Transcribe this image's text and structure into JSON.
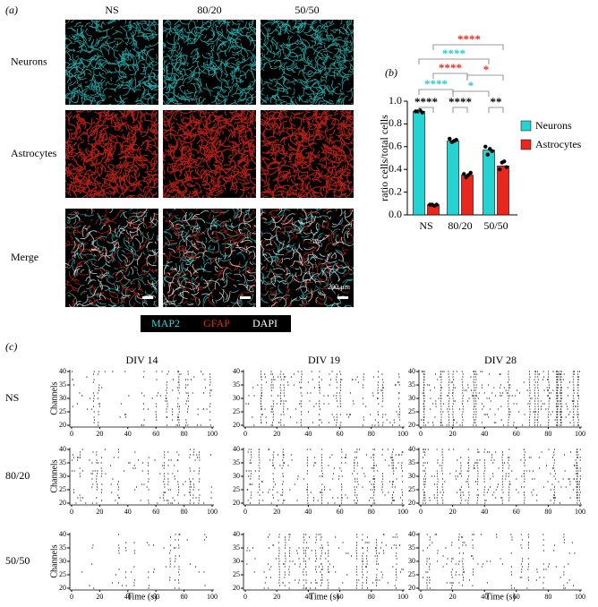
{
  "panel_a": {
    "panel_label": "(a)",
    "columns": [
      "NS",
      "80/20",
      "50/50"
    ],
    "rows": [
      "Neurons",
      "Astrocytes",
      "Merge"
    ],
    "scale_bar": "200 µm",
    "stains": [
      {
        "name": "MAP2",
        "color": "#2fd8d8"
      },
      {
        "name": "GFAP",
        "color": "#e8281e"
      },
      {
        "name": "DAPI",
        "color": "#ffffff"
      }
    ]
  },
  "chart_data": [
    {
      "type": "bar",
      "panel_label": "(b)",
      "ylabel": "ratio cells/total cells",
      "categories": [
        "NS",
        "80/20",
        "50/50"
      ],
      "series": [
        {
          "name": "Neurons",
          "color": "#27d2d2",
          "values": [
            0.91,
            0.65,
            0.57
          ],
          "points": [
            [
              0.91,
              0.91,
              0.92,
              0.9
            ],
            [
              0.67,
              0.64,
              0.65,
              0.66
            ],
            [
              0.6,
              0.53,
              0.58,
              0.56
            ]
          ]
        },
        {
          "name": "Astrocytes",
          "color": "#e8281e",
          "values": [
            0.09,
            0.35,
            0.43
          ],
          "points": [
            [
              0.09,
              0.09,
              0.08,
              0.09
            ],
            [
              0.36,
              0.33,
              0.35,
              0.37
            ],
            [
              0.4,
              0.46,
              0.47,
              0.42
            ]
          ]
        }
      ],
      "ylim": [
        0,
        1
      ],
      "yticks": [
        {
          "value": 0,
          "label": "0.0"
        },
        0.2,
        0.4,
        0.6,
        0.8,
        {
          "value": 1,
          "label": "1.0"
        }
      ],
      "annotations": [
        {
          "text": "****",
          "color": "#e8281e"
        },
        {
          "text": "****",
          "color": "#27c8c8"
        },
        {
          "text": "****",
          "color": "#e8281e"
        },
        {
          "text": "*",
          "color": "#e8281e"
        },
        {
          "text": "****",
          "color": "#27c8c8"
        },
        {
          "text": "*",
          "color": "#27c8c8"
        },
        {
          "text": "****",
          "color": "#000000"
        },
        {
          "text": "****",
          "color": "#000000"
        },
        {
          "text": "**",
          "color": "#000000"
        }
      ]
    },
    {
      "type": "raster",
      "panel_label": "(c)",
      "columns": [
        "DIV 14",
        "DIV 19",
        "DIV 28"
      ],
      "rows": [
        "NS",
        "80/20",
        "50/50"
      ],
      "xlabel": "Time (s)",
      "ylabel": "Channels",
      "xlim": [
        0,
        100
      ],
      "ylim": [
        20,
        40
      ],
      "xticks": [
        0,
        20,
        40,
        60,
        80,
        100
      ],
      "yticks": [
        20,
        25,
        30,
        35,
        40
      ],
      "color": "#000000"
    }
  ]
}
